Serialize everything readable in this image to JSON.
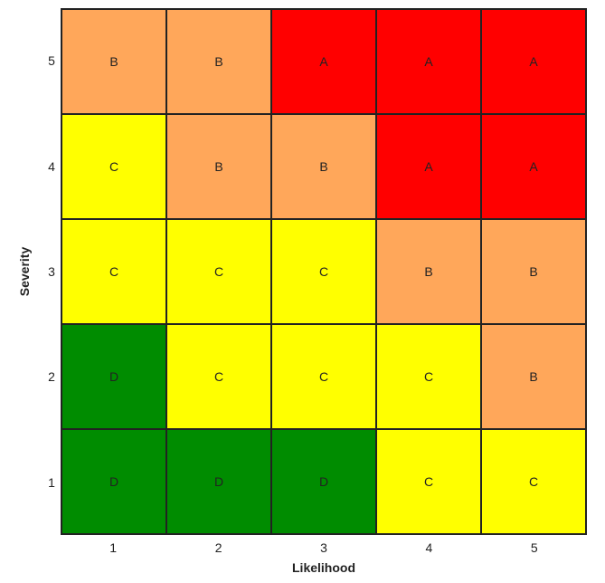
{
  "chart_data": {
    "type": "heatmap",
    "title": "",
    "xlabel": "Likelihood",
    "ylabel": "Severity",
    "x_ticks": [
      "1",
      "2",
      "3",
      "4",
      "5"
    ],
    "y_ticks": [
      "5",
      "4",
      "3",
      "2",
      "1"
    ],
    "rows": [
      {
        "severity": 5,
        "cells": [
          "B",
          "B",
          "A",
          "A",
          "A"
        ]
      },
      {
        "severity": 4,
        "cells": [
          "C",
          "B",
          "B",
          "A",
          "A"
        ]
      },
      {
        "severity": 3,
        "cells": [
          "C",
          "C",
          "C",
          "B",
          "B"
        ]
      },
      {
        "severity": 2,
        "cells": [
          "D",
          "C",
          "C",
          "C",
          "B"
        ]
      },
      {
        "severity": 1,
        "cells": [
          "D",
          "D",
          "D",
          "C",
          "C"
        ]
      }
    ],
    "category_colors": {
      "A": "#ff0000",
      "B": "#ffa75a",
      "C": "#ffff00",
      "D": "#008c00"
    },
    "grid": true,
    "legend": "none"
  }
}
